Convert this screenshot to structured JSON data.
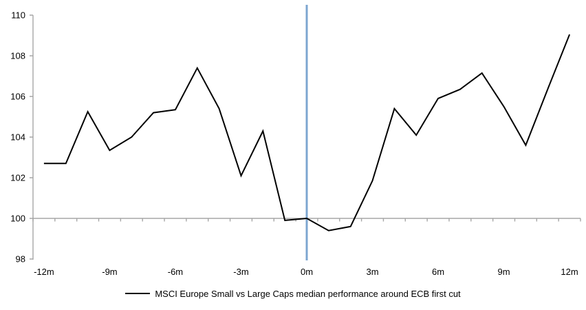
{
  "chart_data": {
    "type": "line",
    "title": "",
    "x": [
      -12,
      -11,
      -10,
      -9,
      -8,
      -7,
      -6,
      -5,
      -4,
      -3,
      -2,
      -1,
      0,
      1,
      2,
      3,
      4,
      5,
      6,
      7,
      8,
      9,
      10,
      11,
      12
    ],
    "series": [
      {
        "name": "MSCI Europe Small vs Large Caps median performance around ECB first cut",
        "color": "#000000",
        "values": [
          102.7,
          102.7,
          105.25,
          103.35,
          104.0,
          105.2,
          105.35,
          107.4,
          105.4,
          102.1,
          104.3,
          99.9,
          100.0,
          99.4,
          99.6,
          101.85,
          105.4,
          104.1,
          105.9,
          106.35,
          107.15,
          105.5,
          103.6,
          106.35,
          109.05
        ]
      }
    ],
    "ylim": [
      98,
      110
    ],
    "yticks": [
      110,
      108,
      106,
      104,
      102,
      100,
      98
    ],
    "xtick_labels": [
      "-12m",
      "-9m",
      "-6m",
      "-3m",
      "0m",
      "3m",
      "6m",
      "9m",
      "12m"
    ],
    "xtick_positions": [
      -12,
      -9,
      -6,
      -3,
      0,
      3,
      6,
      9,
      12
    ],
    "grid": false,
    "baseline_value": 100,
    "event_line_x": 0,
    "legend_position": "bottom-center"
  },
  "legend": {
    "items": [
      {
        "label": "MSCI Europe Small vs Large Caps median performance around ECB first cut",
        "color": "#000000"
      }
    ]
  },
  "colors": {
    "background": "#FFFFFF",
    "axis": "#A6A6A6",
    "event_line": "#7CA6D0",
    "series": "#000000",
    "text": "#000000"
  }
}
